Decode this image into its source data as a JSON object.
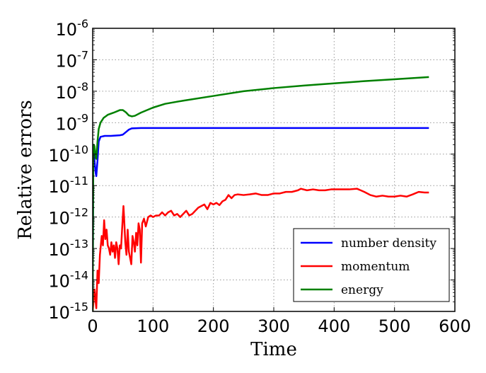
{
  "chart_data": {
    "type": "line",
    "title": "",
    "xlabel": "Time",
    "ylabel": "Relative errors",
    "xlim": [
      0,
      600
    ],
    "ylim_log10": [
      -15,
      -6
    ],
    "yscale": "log",
    "grid": true,
    "legend_position": "bottom-right",
    "x_ticks": [
      {
        "value": 0,
        "label": "0"
      },
      {
        "value": 100,
        "label": "100"
      },
      {
        "value": 200,
        "label": "200"
      },
      {
        "value": 300,
        "label": "300"
      },
      {
        "value": 400,
        "label": "400"
      },
      {
        "value": 500,
        "label": "500"
      },
      {
        "value": 600,
        "label": "600"
      }
    ],
    "y_ticks": [
      {
        "exp": -6,
        "base": "10",
        "sup": "-6"
      },
      {
        "exp": -7,
        "base": "10",
        "sup": "-7"
      },
      {
        "exp": -8,
        "base": "10",
        "sup": "-8"
      },
      {
        "exp": -9,
        "base": "10",
        "sup": "-9"
      },
      {
        "exp": -10,
        "base": "10",
        "sup": "-10"
      },
      {
        "exp": -11,
        "base": "10",
        "sup": "-11"
      },
      {
        "exp": -12,
        "base": "10",
        "sup": "-12"
      },
      {
        "exp": -13,
        "base": "10",
        "sup": "-13"
      },
      {
        "exp": -14,
        "base": "10",
        "sup": "-14"
      },
      {
        "exp": -15,
        "base": "10",
        "sup": "-15"
      }
    ],
    "series": [
      {
        "name": "number density",
        "color": "#0000ff",
        "log10_points": [
          [
            0,
            -15.0
          ],
          [
            1,
            -10.4
          ],
          [
            2,
            -9.9
          ],
          [
            3,
            -10.2
          ],
          [
            5,
            -10.6
          ],
          [
            6,
            -10.7
          ],
          [
            8,
            -10.2
          ],
          [
            10,
            -9.6
          ],
          [
            13,
            -9.45
          ],
          [
            20,
            -9.42
          ],
          [
            30,
            -9.42
          ],
          [
            45,
            -9.4
          ],
          [
            50,
            -9.38
          ],
          [
            55,
            -9.3
          ],
          [
            60,
            -9.22
          ],
          [
            65,
            -9.18
          ],
          [
            80,
            -9.17
          ],
          [
            100,
            -9.17
          ],
          [
            200,
            -9.17
          ],
          [
            300,
            -9.17
          ],
          [
            400,
            -9.17
          ],
          [
            500,
            -9.17
          ],
          [
            557,
            -9.17
          ]
        ]
      },
      {
        "name": "momentum",
        "color": "#ff0000",
        "log10_points": [
          [
            0,
            -15.0
          ],
          [
            3,
            -14.3
          ],
          [
            6,
            -14.9
          ],
          [
            8,
            -13.7
          ],
          [
            10,
            -14.1
          ],
          [
            12,
            -13.2
          ],
          [
            15,
            -12.6
          ],
          [
            17,
            -12.9
          ],
          [
            19,
            -12.1
          ],
          [
            21,
            -12.7
          ],
          [
            23,
            -12.4
          ],
          [
            25,
            -12.9
          ],
          [
            27,
            -13.0
          ],
          [
            29,
            -13.2
          ],
          [
            31,
            -12.8
          ],
          [
            33,
            -13.1
          ],
          [
            35,
            -12.9
          ],
          [
            37,
            -13.3
          ],
          [
            39,
            -12.8
          ],
          [
            41,
            -13.0
          ],
          [
            43,
            -13.5
          ],
          [
            45,
            -12.9
          ],
          [
            47,
            -13.0
          ],
          [
            49,
            -12.3
          ],
          [
            51,
            -11.65
          ],
          [
            52,
            -12.0
          ],
          [
            54,
            -12.8
          ],
          [
            56,
            -13.2
          ],
          [
            58,
            -12.4
          ],
          [
            60,
            -13.1
          ],
          [
            62,
            -13.3
          ],
          [
            64,
            -13.5
          ],
          [
            66,
            -12.6
          ],
          [
            68,
            -12.8
          ],
          [
            70,
            -13.1
          ],
          [
            72,
            -12.5
          ],
          [
            74,
            -12.9
          ],
          [
            76,
            -12.2
          ],
          [
            78,
            -12.4
          ],
          [
            80,
            -13.45
          ],
          [
            82,
            -12.2
          ],
          [
            85,
            -12.05
          ],
          [
            88,
            -12.3
          ],
          [
            92,
            -12.0
          ],
          [
            96,
            -11.95
          ],
          [
            100,
            -12.0
          ],
          [
            105,
            -11.95
          ],
          [
            110,
            -11.95
          ],
          [
            115,
            -11.85
          ],
          [
            120,
            -11.95
          ],
          [
            125,
            -11.85
          ],
          [
            130,
            -11.8
          ],
          [
            135,
            -11.95
          ],
          [
            140,
            -11.9
          ],
          [
            145,
            -12.0
          ],
          [
            150,
            -11.9
          ],
          [
            155,
            -11.8
          ],
          [
            160,
            -11.95
          ],
          [
            165,
            -11.9
          ],
          [
            170,
            -11.8
          ],
          [
            175,
            -11.7
          ],
          [
            180,
            -11.65
          ],
          [
            185,
            -11.6
          ],
          [
            190,
            -11.75
          ],
          [
            195,
            -11.55
          ],
          [
            200,
            -11.6
          ],
          [
            205,
            -11.55
          ],
          [
            210,
            -11.62
          ],
          [
            215,
            -11.5
          ],
          [
            220,
            -11.45
          ],
          [
            225,
            -11.3
          ],
          [
            230,
            -11.4
          ],
          [
            235,
            -11.3
          ],
          [
            240,
            -11.28
          ],
          [
            250,
            -11.3
          ],
          [
            260,
            -11.28
          ],
          [
            270,
            -11.25
          ],
          [
            280,
            -11.3
          ],
          [
            290,
            -11.3
          ],
          [
            300,
            -11.25
          ],
          [
            310,
            -11.25
          ],
          [
            320,
            -11.2
          ],
          [
            330,
            -11.2
          ],
          [
            340,
            -11.15
          ],
          [
            345,
            -11.1
          ],
          [
            355,
            -11.15
          ],
          [
            365,
            -11.12
          ],
          [
            375,
            -11.15
          ],
          [
            385,
            -11.15
          ],
          [
            395,
            -11.12
          ],
          [
            410,
            -11.12
          ],
          [
            425,
            -11.12
          ],
          [
            438,
            -11.1
          ],
          [
            450,
            -11.2
          ],
          [
            460,
            -11.3
          ],
          [
            470,
            -11.35
          ],
          [
            480,
            -11.32
          ],
          [
            490,
            -11.35
          ],
          [
            500,
            -11.35
          ],
          [
            510,
            -11.32
          ],
          [
            520,
            -11.35
          ],
          [
            530,
            -11.28
          ],
          [
            540,
            -11.2
          ],
          [
            550,
            -11.22
          ],
          [
            557,
            -11.22
          ]
        ]
      },
      {
        "name": "energy",
        "color": "#008000",
        "log10_points": [
          [
            0,
            -15.0
          ],
          [
            1,
            -10.0
          ],
          [
            2,
            -9.7
          ],
          [
            3,
            -9.75
          ],
          [
            5,
            -10.1
          ],
          [
            6,
            -10.15
          ],
          [
            8,
            -9.6
          ],
          [
            10,
            -9.2
          ],
          [
            13,
            -9.0
          ],
          [
            18,
            -8.85
          ],
          [
            25,
            -8.75
          ],
          [
            35,
            -8.68
          ],
          [
            45,
            -8.6
          ],
          [
            50,
            -8.6
          ],
          [
            55,
            -8.67
          ],
          [
            60,
            -8.77
          ],
          [
            65,
            -8.8
          ],
          [
            70,
            -8.78
          ],
          [
            80,
            -8.68
          ],
          [
            100,
            -8.52
          ],
          [
            120,
            -8.4
          ],
          [
            150,
            -8.3
          ],
          [
            200,
            -8.15
          ],
          [
            250,
            -8.0
          ],
          [
            300,
            -7.9
          ],
          [
            350,
            -7.82
          ],
          [
            400,
            -7.75
          ],
          [
            450,
            -7.68
          ],
          [
            500,
            -7.62
          ],
          [
            557,
            -7.55
          ]
        ]
      }
    ]
  }
}
